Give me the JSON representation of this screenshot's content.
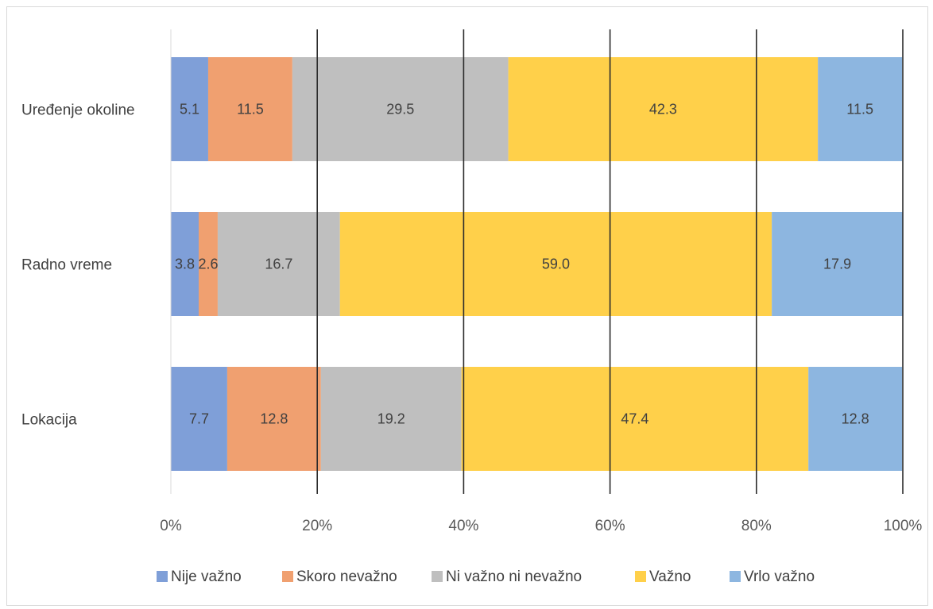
{
  "chart_data": {
    "type": "bar",
    "orientation": "horizontal",
    "stacked": "percent",
    "categories": [
      "Uređenje okoline",
      "Radno vreme",
      "Lokacija"
    ],
    "series": [
      {
        "name": "Nije važno",
        "color": "#7f9fd8",
        "values": [
          5.1,
          3.8,
          7.7
        ]
      },
      {
        "name": "Skoro nevažno",
        "color": "#f0a070",
        "values": [
          11.5,
          2.6,
          12.8
        ]
      },
      {
        "name": "Ni važno ni nevažno",
        "color": "#bfbfbf",
        "values": [
          29.5,
          16.7,
          19.2
        ]
      },
      {
        "name": "Važno",
        "color": "#ffd04a",
        "values": [
          42.3,
          59.0,
          47.4
        ]
      },
      {
        "name": "Vrlo važno",
        "color": "#8db6e0",
        "values": [
          11.5,
          17.9,
          12.8
        ]
      }
    ],
    "data_labels": [
      [
        "5.1",
        "11.5",
        "29.5",
        "42.3",
        "11.5"
      ],
      [
        "3.8",
        "2.6",
        "16.7",
        "59.0",
        "17.9"
      ],
      [
        "7.7",
        "12.8",
        "19.2",
        "47.4",
        "12.8"
      ]
    ],
    "x_ticks": [
      "0%",
      "20%",
      "40%",
      "60%",
      "80%",
      "100%"
    ],
    "xlim": [
      0,
      100
    ],
    "gridlines": "vertical",
    "legend_position": "bottom"
  }
}
